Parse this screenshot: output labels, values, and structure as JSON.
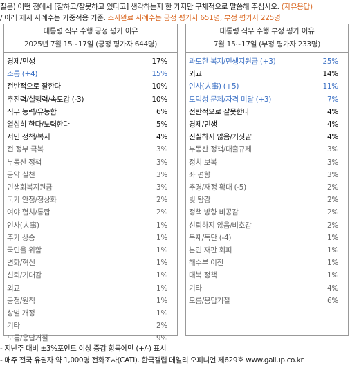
{
  "header": {
    "question": "질문) 어떤 점에서 [잘하고/잘못하고 있다고] 생각하는지 한 가지만 구체적으로 말씀해 주십시오.",
    "question_note": "(자유응답)",
    "note_prefix": "/ 아래 제시 사례수는 가중적용 기준.",
    "note_highlight": "조사완료 사례수는 긍정 평가자 651명, 부정 평가자 225명"
  },
  "tables": [
    {
      "title": "대통령 직무 수행 긍정 평가 이유",
      "subtitle": "2025년 7월 15~17일 (긍정 평가자 644명)",
      "text_color": "#666",
      "rows": [
        {
          "label": "경제/민생",
          "value": "17%",
          "color": "#111"
        },
        {
          "label": "소통 (+4)",
          "value": "15%",
          "color": "#3a6fc4"
        },
        {
          "label": "전반적으로 잘한다",
          "value": "10%",
          "color": "#111"
        },
        {
          "label": "추진력/실행력/속도감 (-3)",
          "value": "10%",
          "color": "#111"
        },
        {
          "label": "직무 능력/유능함",
          "value": "6%",
          "color": "#111"
        },
        {
          "label": "열심히 한다/노력한다",
          "value": "5%",
          "color": "#111"
        },
        {
          "label": "서민 정책/복지",
          "value": "4%",
          "color": "#111"
        },
        {
          "label": "전 정부 극복",
          "value": "3%"
        },
        {
          "label": "부동산 정책",
          "value": "3%"
        },
        {
          "label": "공약 실천",
          "value": "3%"
        },
        {
          "label": "민생회복지원금",
          "value": "3%"
        },
        {
          "label": "국가 안정/정상화",
          "value": "2%"
        },
        {
          "label": "여야 협치/통합",
          "value": "2%"
        },
        {
          "label": "인사(人事)",
          "value": "1%"
        },
        {
          "label": "주가 상승",
          "value": "1%"
        },
        {
          "label": "국민을 위함",
          "value": "1%"
        },
        {
          "label": "변화/혁신",
          "value": "1%"
        },
        {
          "label": "신뢰/기대감",
          "value": "1%"
        },
        {
          "label": "외교",
          "value": "1%"
        },
        {
          "label": "공정/원칙",
          "value": "1%"
        },
        {
          "label": "상벌 개정",
          "value": "1%"
        },
        {
          "label": "기타",
          "value": "2%"
        },
        {
          "label": "모름/응답거절",
          "value": "9%"
        }
      ]
    },
    {
      "title": "대통령 직무 수행 부정 평가 이유",
      "subtitle": "7월 15~17일 (부정 평가자 233명)",
      "text_color": "#666",
      "rows": [
        {
          "label": "과도한 복지/민생지원금 (+3)",
          "value": "25%",
          "color": "#3a6fc4"
        },
        {
          "label": "외교",
          "value": "14%",
          "color": "#111"
        },
        {
          "label": "인사(人事) (+5)",
          "value": "11%",
          "color": "#3a6fc4"
        },
        {
          "label": "도덕성 문제/자격 미달 (+3)",
          "value": "7%",
          "color": "#3a6fc4"
        },
        {
          "label": "전반적으로 잘못한다",
          "value": "4%",
          "color": "#111"
        },
        {
          "label": "경제/민생",
          "value": "4%",
          "color": "#111"
        },
        {
          "label": "진실하지 않음/거짓말",
          "value": "4%",
          "color": "#111"
        },
        {
          "label": "부동산 정책/대출규제",
          "value": "3%"
        },
        {
          "label": "정치 보복",
          "value": "3%"
        },
        {
          "label": "좌 편향",
          "value": "3%"
        },
        {
          "label": "추경/재정 확대 (-5)",
          "value": "2%"
        },
        {
          "label": "빚 탕감",
          "value": "2%"
        },
        {
          "label": "정책 방향 비공감",
          "value": "2%"
        },
        {
          "label": "신뢰하지 않음/비호감",
          "value": "2%"
        },
        {
          "label": "독재/독단 (-4)",
          "value": "1%"
        },
        {
          "label": "본인 재판 회피",
          "value": "1%"
        },
        {
          "label": "해수부 이전",
          "value": "1%"
        },
        {
          "label": "대북 정책",
          "value": "1%"
        },
        {
          "label": "기타",
          "value": "4%"
        },
        {
          "label": "모름/응답거절",
          "value": "6%"
        }
      ]
    }
  ],
  "footer": {
    "lines": [
      "- 지난주 대비 ±3%포인트 이상 증감 항목에만 (+/-) 표시",
      "- 매주 전국 유권자 약 1,000명 전화조사(CATI). 한국갤럽 데일리 오피니언 제629호 www.gallup.co.kr"
    ]
  }
}
